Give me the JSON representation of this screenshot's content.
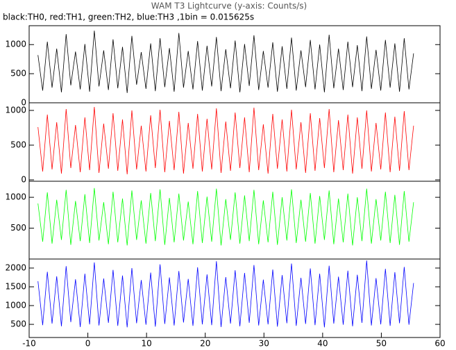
{
  "chart_data": [
    {
      "type": "line",
      "title": "WAM T3 Lightcurve (y-axis: Counts/s)",
      "subtitle": "black:TH0, red:TH1, green:TH2, blue:TH3 ,1bin = 0.015625s",
      "color": "#000000",
      "xlim": [
        -10,
        60
      ],
      "ylim": [
        0,
        1325
      ],
      "yticks": [
        0,
        500,
        1000
      ],
      "x": [
        -8.5,
        -7.7,
        -6.9,
        -6.1,
        -5.3,
        -4.5,
        -3.7,
        -2.9,
        -2.1,
        -1.3,
        -0.5,
        0.3,
        1.1,
        1.9,
        2.7,
        3.5,
        4.3,
        5.1,
        5.9,
        6.7,
        7.5,
        8.3,
        9.1,
        9.9,
        10.7,
        11.5,
        12.3,
        13.1,
        13.9,
        14.7,
        15.5,
        16.3,
        17.1,
        17.9,
        18.7,
        19.5,
        20.3,
        21.1,
        21.9,
        22.7,
        23.5,
        24.3,
        25.1,
        25.9,
        26.7,
        27.5,
        28.3,
        29.1,
        29.9,
        30.7,
        31.5,
        32.3,
        33.1,
        33.9,
        34.7,
        35.5,
        36.3,
        37.1,
        37.9,
        38.7,
        39.5,
        40.3,
        41.1,
        41.9,
        42.7,
        43.5,
        44.3,
        45.1,
        45.9,
        46.7,
        47.5,
        48.3,
        49.1,
        49.9,
        50.7,
        51.5,
        52.3,
        53.1,
        53.9,
        54.7,
        55.5
      ],
      "values": [
        820,
        210,
        1050,
        260,
        930,
        180,
        1180,
        300,
        880,
        230,
        1010,
        190,
        1240,
        280,
        900,
        220,
        1090,
        250,
        960,
        170,
        1150,
        310,
        870,
        240,
        1020,
        200,
        1110,
        270,
        940,
        190,
        1200,
        260,
        890,
        230,
        1060,
        210,
        980,
        280,
        1130,
        200,
        920,
        250,
        1070,
        180,
        1010,
        290,
        1160,
        220,
        890,
        260,
        1040,
        190,
        970,
        240,
        1120,
        210,
        900,
        270,
        1080,
        230,
        1000,
        180,
        1170,
        250,
        930,
        220,
        1050,
        270,
        990,
        200,
        1140,
        240,
        910,
        210,
        1080,
        260,
        1020,
        190,
        1110,
        230,
        850
      ]
    },
    {
      "type": "line",
      "color": "#ff0000",
      "xlim": [
        -10,
        60
      ],
      "ylim": [
        -20,
        1110
      ],
      "yticks": [
        0,
        500,
        1000
      ],
      "x": [
        -8.5,
        -7.7,
        -6.9,
        -6.1,
        -5.3,
        -4.5,
        -3.7,
        -2.9,
        -2.1,
        -1.3,
        -0.5,
        0.3,
        1.1,
        1.9,
        2.7,
        3.5,
        4.3,
        5.1,
        5.9,
        6.7,
        7.5,
        8.3,
        9.1,
        9.9,
        10.7,
        11.5,
        12.3,
        13.1,
        13.9,
        14.7,
        15.5,
        16.3,
        17.1,
        17.9,
        18.7,
        19.5,
        20.3,
        21.1,
        21.9,
        22.7,
        23.5,
        24.3,
        25.1,
        25.9,
        26.7,
        27.5,
        28.3,
        29.1,
        29.9,
        30.7,
        31.5,
        32.3,
        33.1,
        33.9,
        34.7,
        35.5,
        36.3,
        37.1,
        37.9,
        38.7,
        39.5,
        40.3,
        41.1,
        41.9,
        42.7,
        43.5,
        44.3,
        45.1,
        45.9,
        46.7,
        47.5,
        48.3,
        49.1,
        49.9,
        50.7,
        51.5,
        52.3,
        53.1,
        53.9,
        54.7,
        55.5
      ],
      "values": [
        760,
        120,
        940,
        150,
        830,
        90,
        1020,
        170,
        790,
        110,
        900,
        140,
        1050,
        100,
        810,
        160,
        960,
        130,
        870,
        80,
        1000,
        150,
        780,
        120,
        930,
        170,
        1010,
        110,
        850,
        140,
        980,
        90,
        820,
        160,
        950,
        120,
        880,
        150,
        1030,
        100,
        840,
        130,
        970,
        170,
        900,
        110,
        1040,
        140,
        800,
        90,
        950,
        160,
        870,
        120,
        1010,
        150,
        830,
        100,
        960,
        130,
        890,
        170,
        1020,
        110,
        860,
        140,
        940,
        90,
        900,
        160,
        1000,
        120,
        820,
        150,
        970,
        110,
        910,
        130,
        990,
        140,
        780
      ]
    },
    {
      "type": "line",
      "color": "#00ff00",
      "xlim": [
        -10,
        60
      ],
      "ylim": [
        0,
        1260
      ],
      "yticks": [
        500,
        1000
      ],
      "x": [
        -8.5,
        -7.7,
        -6.9,
        -6.1,
        -5.3,
        -4.5,
        -3.7,
        -2.9,
        -2.1,
        -1.3,
        -0.5,
        0.3,
        1.1,
        1.9,
        2.7,
        3.5,
        4.3,
        5.1,
        5.9,
        6.7,
        7.5,
        8.3,
        9.1,
        9.9,
        10.7,
        11.5,
        12.3,
        13.1,
        13.9,
        14.7,
        15.5,
        16.3,
        17.1,
        17.9,
        18.7,
        19.5,
        20.3,
        21.1,
        21.9,
        22.7,
        23.5,
        24.3,
        25.1,
        25.9,
        26.7,
        27.5,
        28.3,
        29.1,
        29.9,
        30.7,
        31.5,
        32.3,
        33.1,
        33.9,
        34.7,
        35.5,
        36.3,
        37.1,
        37.9,
        38.7,
        39.5,
        40.3,
        41.1,
        41.9,
        42.7,
        43.5,
        44.3,
        45.1,
        45.9,
        46.7,
        47.5,
        48.3,
        49.1,
        49.9,
        50.7,
        51.5,
        52.3,
        53.1,
        53.9,
        54.7,
        55.5
      ],
      "values": [
        900,
        280,
        1080,
        250,
        960,
        310,
        1120,
        230,
        940,
        290,
        1050,
        260,
        1150,
        300,
        920,
        240,
        1090,
        270,
        980,
        220,
        1110,
        310,
        950,
        250,
        1070,
        290,
        1130,
        230,
        990,
        270,
        1060,
        300,
        930,
        240,
        1100,
        260,
        1010,
        280,
        1140,
        220,
        970,
        310,
        1080,
        250,
        1030,
        290,
        1120,
        240,
        950,
        270,
        1090,
        230,
        1000,
        300,
        1130,
        260,
        960,
        280,
        1070,
        250,
        1020,
        310,
        1110,
        240,
        980,
        270,
        1060,
        220,
        1000,
        290,
        1140,
        250,
        970,
        300,
        1090,
        260,
        1040,
        230,
        1100,
        280,
        920
      ]
    },
    {
      "type": "line",
      "color": "#0000ff",
      "xlim": [
        -10,
        60
      ],
      "ylim": [
        150,
        2240
      ],
      "yticks": [
        500,
        1000,
        1500,
        2000
      ],
      "xticks": [
        -10,
        0,
        10,
        20,
        30,
        40,
        50,
        60
      ],
      "x": [
        -8.5,
        -7.7,
        -6.9,
        -6.1,
        -5.3,
        -4.5,
        -3.7,
        -2.9,
        -2.1,
        -1.3,
        -0.5,
        0.3,
        1.1,
        1.9,
        2.7,
        3.5,
        4.3,
        5.1,
        5.9,
        6.7,
        7.5,
        8.3,
        9.1,
        9.9,
        10.7,
        11.5,
        12.3,
        13.1,
        13.9,
        14.7,
        15.5,
        16.3,
        17.1,
        17.9,
        18.7,
        19.5,
        20.3,
        21.1,
        21.9,
        22.7,
        23.5,
        24.3,
        25.1,
        25.9,
        26.7,
        27.5,
        28.3,
        29.1,
        29.9,
        30.7,
        31.5,
        32.3,
        33.1,
        33.9,
        34.7,
        35.5,
        36.3,
        37.1,
        37.9,
        38.7,
        39.5,
        40.3,
        41.1,
        41.9,
        42.7,
        43.5,
        44.3,
        45.1,
        45.9,
        46.7,
        47.5,
        48.3,
        49.1,
        49.9,
        50.7,
        51.5,
        52.3,
        53.1,
        53.9,
        54.7,
        55.5
      ],
      "values": [
        1650,
        480,
        1900,
        520,
        1780,
        450,
        2050,
        560,
        1700,
        430,
        1850,
        500,
        2150,
        470,
        1720,
        540,
        1950,
        460,
        1800,
        420,
        2000,
        530,
        1680,
        490,
        1880,
        440,
        2100,
        510,
        1750,
        470,
        1920,
        550,
        1710,
        460,
        2020,
        500,
        1830,
        480,
        2180,
        430,
        1760,
        520,
        1940,
        450,
        1870,
        540,
        2080,
        470,
        1690,
        500,
        1960,
        440,
        1810,
        530,
        2120,
        460,
        1740,
        510,
        1990,
        480,
        1850,
        420,
        2060,
        520,
        1770,
        490,
        1930,
        450,
        1820,
        540,
        2200,
        470,
        1730,
        500,
        1980,
        460,
        1890,
        530,
        2030,
        490,
        1600
      ]
    }
  ]
}
